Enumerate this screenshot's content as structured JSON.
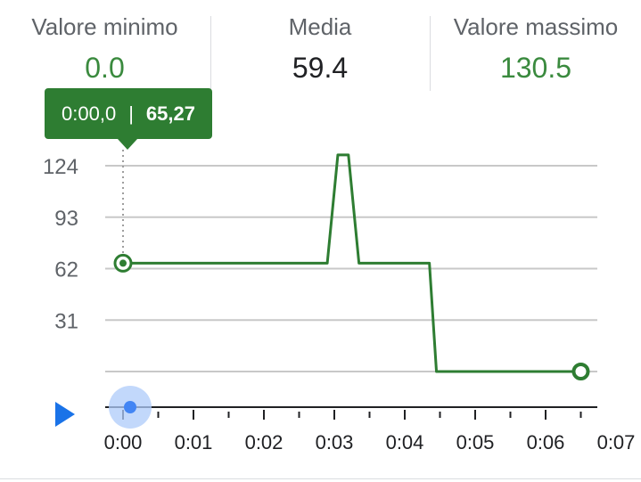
{
  "stats": {
    "min_label": "Valore minimo",
    "min_value": "0.0",
    "avg_label": "Media",
    "avg_value": "59.4",
    "max_label": "Valore massimo",
    "max_value": "130.5"
  },
  "tooltip": {
    "time": "0:00,0",
    "value": "65,27"
  },
  "playback": {
    "position": 0.0
  },
  "colors": {
    "line": "#2e7d32",
    "stat_green": "#3a8a3e",
    "grid": "#c8c8c8",
    "scrubber": "#4285f4",
    "scrubber_halo": "#aecbfa",
    "play": "#1a73e8"
  },
  "chart_data": {
    "type": "line",
    "y_ticks": [
      31,
      62,
      93,
      124
    ],
    "y_tick_labels": [
      "31",
      "62",
      "93",
      "124"
    ],
    "ylim": [
      0,
      124
    ],
    "x_ticks": [
      0,
      1,
      2,
      3,
      4,
      5,
      6,
      7
    ],
    "x_tick_labels": [
      "0:00",
      "0:01",
      "0:02",
      "0:03",
      "0:04",
      "0:05",
      "0:06",
      "0:07"
    ],
    "xlim": [
      0,
      7
    ],
    "series": [
      {
        "x": [
          0,
          2.9,
          3.05,
          3.2,
          3.35,
          4.35,
          4.45,
          6.5
        ],
        "y": [
          65.27,
          65.27,
          130.5,
          130.5,
          65.27,
          65.27,
          0,
          0
        ]
      }
    ],
    "grid": true
  }
}
